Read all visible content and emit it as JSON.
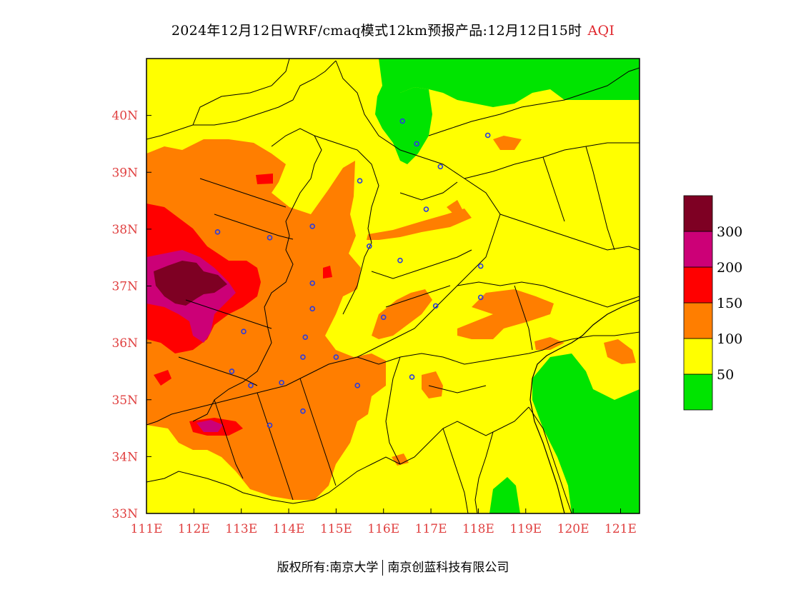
{
  "title": {
    "main": "2024年12月12日WRF/cmaq模式12km预报产品:12月12日15时",
    "variable": "AQI"
  },
  "footer": {
    "left": "版权所有:南京大学",
    "right": "南京创蓝科技有限公司"
  },
  "map": {
    "lon_range": [
      111,
      121.4
    ],
    "lat_range": [
      33,
      41
    ],
    "lon_ticks": [
      "111E",
      "112E",
      "113E",
      "114E",
      "115E",
      "116E",
      "117E",
      "118E",
      "119E",
      "120E",
      "121E"
    ],
    "lat_ticks": [
      "33N",
      "34N",
      "35N",
      "36N",
      "37N",
      "38N",
      "39N",
      "40N"
    ],
    "tick_color": "#e04040"
  },
  "legend": {
    "colors": [
      "#00e400",
      "#ffff00",
      "#ff7e00",
      "#ff0000",
      "#cc0077",
      "#7e0023"
    ],
    "labels": [
      "50",
      "100",
      "150",
      "200",
      "300"
    ]
  },
  "city_markers": [
    [
      116.4,
      39.9
    ],
    [
      116.7,
      39.5
    ],
    [
      117.2,
      39.1
    ],
    [
      118.2,
      39.65
    ],
    [
      115.5,
      38.85
    ],
    [
      116.9,
      38.35
    ],
    [
      114.5,
      38.05
    ],
    [
      113.6,
      37.85
    ],
    [
      112.5,
      37.95
    ],
    [
      115.7,
      37.7
    ],
    [
      116.35,
      37.45
    ],
    [
      114.5,
      37.05
    ],
    [
      114.5,
      36.6
    ],
    [
      114.35,
      36.1
    ],
    [
      113.05,
      36.2
    ],
    [
      117.1,
      36.65
    ],
    [
      116.0,
      36.45
    ],
    [
      118.05,
      37.35
    ],
    [
      118.05,
      36.8
    ],
    [
      115.0,
      35.75
    ],
    [
      114.3,
      35.75
    ],
    [
      112.8,
      35.5
    ],
    [
      113.2,
      35.25
    ],
    [
      113.85,
      35.3
    ],
    [
      115.45,
      35.25
    ],
    [
      116.6,
      35.4
    ],
    [
      114.3,
      34.8
    ],
    [
      113.6,
      34.55
    ]
  ]
}
